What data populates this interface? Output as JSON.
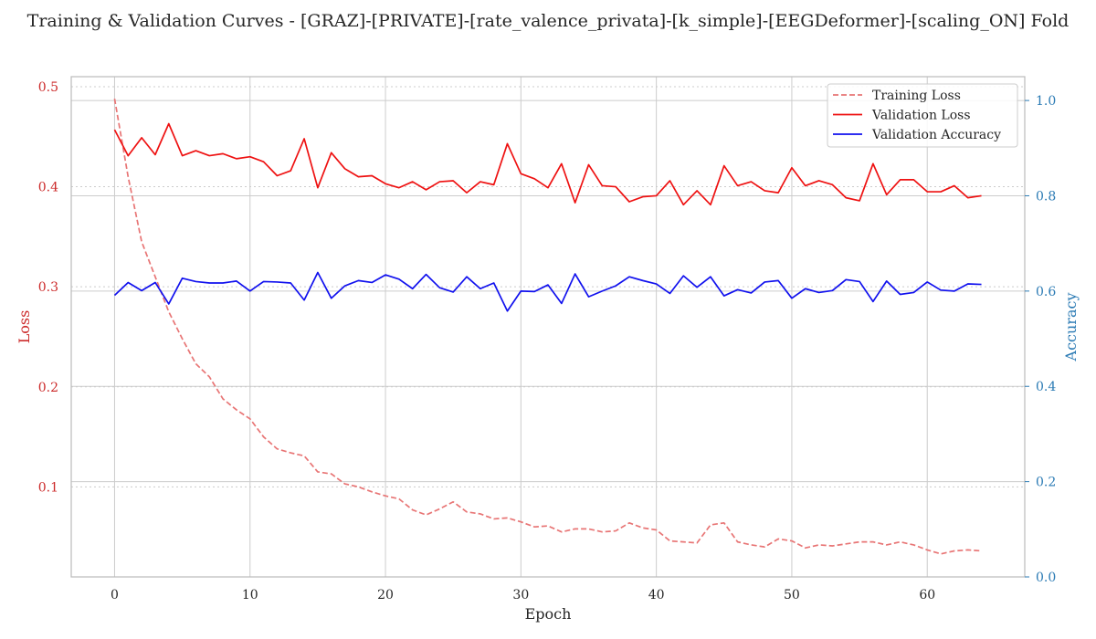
{
  "chart_data": {
    "type": "line",
    "title": "Training & Validation Curves - [GRAZ]-[PRIVATE]-[rate_valence_privata]-[k_simple]-[EEGDeformer]-[scaling_ON] Fold",
    "xlabel": "Epoch",
    "ylabel_left": "Loss",
    "ylabel_right": "Accuracy",
    "xlim": [
      -3.2,
      67.2
    ],
    "ylim_left": [
      0.01,
      0.51
    ],
    "ylim_right": [
      0.0,
      1.05
    ],
    "x_ticks": [
      0,
      10,
      20,
      30,
      40,
      50,
      60
    ],
    "y_left_ticks": [
      0.1,
      0.2,
      0.3,
      0.4,
      0.5
    ],
    "y_right_ticks": [
      0.0,
      0.2,
      0.4,
      0.6,
      0.8,
      1.0
    ],
    "grid": true,
    "legend_position": "upper right",
    "colors": {
      "training_loss": "#e87575",
      "validation_loss": "#ee1111",
      "validation_accuracy": "#1111ee",
      "left_axis": "#cc2a2a",
      "right_axis": "#2a7ab4",
      "grid": "#cccccc",
      "spine": "#bbbbbb"
    },
    "x": [
      0,
      1,
      2,
      3,
      4,
      5,
      6,
      7,
      8,
      9,
      10,
      11,
      12,
      13,
      14,
      15,
      16,
      17,
      18,
      19,
      20,
      21,
      22,
      23,
      24,
      25,
      26,
      27,
      28,
      29,
      30,
      31,
      32,
      33,
      34,
      35,
      36,
      37,
      38,
      39,
      40,
      41,
      42,
      43,
      44,
      45,
      46,
      47,
      48,
      49,
      50,
      51,
      52,
      53,
      54,
      55,
      56,
      57,
      58,
      59,
      60,
      61,
      62,
      63,
      64
    ],
    "series": [
      {
        "name": "Training Loss",
        "axis": "left",
        "style": "dashed",
        "color": "#e87575",
        "values": [
          0.488,
          0.41,
          0.345,
          0.31,
          0.275,
          0.248,
          0.223,
          0.21,
          0.188,
          0.177,
          0.168,
          0.15,
          0.138,
          0.134,
          0.131,
          0.115,
          0.113,
          0.103,
          0.1,
          0.095,
          0.091,
          0.088,
          0.077,
          0.072,
          0.078,
          0.085,
          0.075,
          0.073,
          0.068,
          0.069,
          0.065,
          0.06,
          0.061,
          0.055,
          0.058,
          0.058,
          0.055,
          0.056,
          0.064,
          0.059,
          0.057,
          0.046,
          0.045,
          0.044,
          0.062,
          0.064,
          0.045,
          0.042,
          0.04,
          0.048,
          0.046,
          0.039,
          0.042,
          0.041,
          0.043,
          0.045,
          0.045,
          0.042,
          0.045,
          0.042,
          0.037,
          0.033,
          0.036,
          0.037,
          0.036
        ]
      },
      {
        "name": "Validation Loss",
        "axis": "left",
        "style": "solid",
        "color": "#ee1111",
        "values": [
          0.457,
          0.431,
          0.449,
          0.432,
          0.463,
          0.431,
          0.436,
          0.431,
          0.433,
          0.428,
          0.43,
          0.425,
          0.411,
          0.416,
          0.448,
          0.399,
          0.434,
          0.418,
          0.41,
          0.411,
          0.403,
          0.399,
          0.405,
          0.397,
          0.405,
          0.406,
          0.394,
          0.405,
          0.402,
          0.443,
          0.413,
          0.408,
          0.399,
          0.423,
          0.384,
          0.422,
          0.401,
          0.4,
          0.385,
          0.39,
          0.391,
          0.406,
          0.382,
          0.396,
          0.382,
          0.421,
          0.401,
          0.405,
          0.396,
          0.394,
          0.419,
          0.401,
          0.406,
          0.402,
          0.389,
          0.386,
          0.423,
          0.392,
          0.407,
          0.407,
          0.395,
          0.395,
          0.401,
          0.389,
          0.391
        ]
      },
      {
        "name": "Validation Accuracy",
        "axis": "right",
        "style": "solid",
        "color": "#1111ee",
        "values": [
          0.591,
          0.618,
          0.601,
          0.618,
          0.573,
          0.627,
          0.62,
          0.617,
          0.617,
          0.621,
          0.6,
          0.62,
          0.619,
          0.617,
          0.581,
          0.639,
          0.585,
          0.611,
          0.622,
          0.618,
          0.634,
          0.625,
          0.605,
          0.635,
          0.607,
          0.598,
          0.63,
          0.605,
          0.617,
          0.558,
          0.6,
          0.599,
          0.613,
          0.574,
          0.636,
          0.588,
          0.6,
          0.611,
          0.63,
          0.622,
          0.615,
          0.595,
          0.632,
          0.608,
          0.63,
          0.59,
          0.603,
          0.596,
          0.619,
          0.622,
          0.585,
          0.605,
          0.597,
          0.601,
          0.624,
          0.62,
          0.578,
          0.621,
          0.593,
          0.597,
          0.619,
          0.602,
          0.6,
          0.615,
          0.614
        ]
      }
    ]
  }
}
